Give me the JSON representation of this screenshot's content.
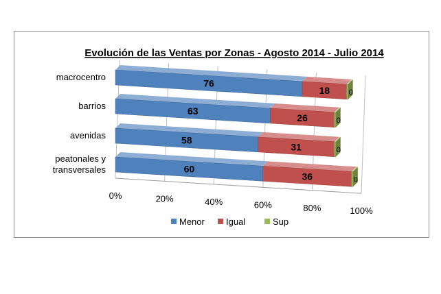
{
  "chart_data": {
    "type": "bar",
    "orientation": "horizontal",
    "stacking": "percent",
    "style": "3d",
    "title": "Evolución de las Ventas por Zonas - Agosto  2014 - Julio 2014",
    "categories": [
      [
        "macrocentro"
      ],
      [
        "barrios"
      ],
      [
        "avenidas"
      ],
      [
        "peatonales y",
        "transversales"
      ]
    ],
    "series": [
      {
        "name": "Menor",
        "values": [
          76,
          63,
          58,
          60
        ],
        "color": "#4f81bd"
      },
      {
        "name": "Igual",
        "values": [
          18,
          26,
          31,
          36
        ],
        "color": "#c0504d"
      },
      {
        "name": "Sup",
        "values": [
          0,
          0,
          0,
          0
        ],
        "color": "#9bbb59"
      }
    ],
    "xticks": [
      "0%",
      "20%",
      "40%",
      "60%",
      "80%",
      "100%"
    ],
    "xlim": [
      0,
      100
    ],
    "grid": true,
    "legend": "bottom"
  }
}
